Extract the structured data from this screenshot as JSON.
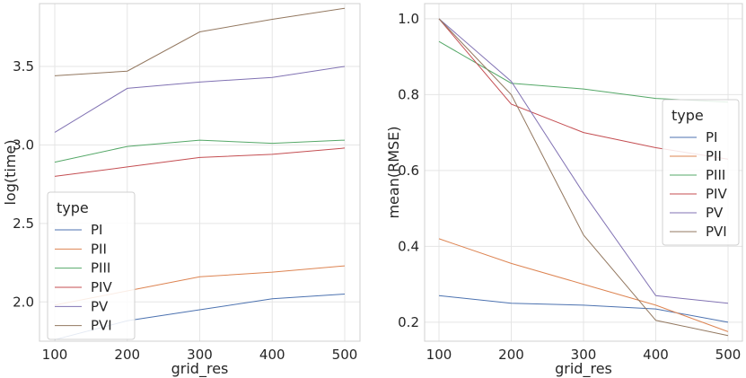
{
  "colors": {
    "PI": "#4c72b0",
    "PII": "#dd8452",
    "PIII": "#55a868",
    "PIV": "#c44e52",
    "PV": "#8172b3",
    "PVI": "#937860"
  },
  "chart_data": [
    {
      "type": "line",
      "xlabel": "grid_res",
      "ylabel": "log(time)",
      "x": [
        100,
        200,
        300,
        400,
        500
      ],
      "xticks": [
        "100",
        "200",
        "300",
        "400",
        "500"
      ],
      "yticks": [
        "2.0",
        "2.5",
        "3.0",
        "3.5"
      ],
      "ylim": [
        1.75,
        3.9
      ],
      "grid": true,
      "legend": {
        "title": "type",
        "placement": "lower-left"
      },
      "series": [
        {
          "name": "PI",
          "values": [
            1.76,
            1.88,
            1.95,
            2.02,
            2.05
          ]
        },
        {
          "name": "PII",
          "values": [
            1.98,
            2.07,
            2.16,
            2.19,
            2.23
          ]
        },
        {
          "name": "PIII",
          "values": [
            2.89,
            2.99,
            3.03,
            3.01,
            3.03
          ]
        },
        {
          "name": "PIV",
          "values": [
            2.8,
            2.86,
            2.92,
            2.94,
            2.98
          ]
        },
        {
          "name": "PV",
          "values": [
            3.08,
            3.36,
            3.4,
            3.43,
            3.5
          ]
        },
        {
          "name": "PVI",
          "values": [
            3.44,
            3.47,
            3.72,
            3.8,
            3.87
          ]
        }
      ]
    },
    {
      "type": "line",
      "xlabel": "grid_res",
      "ylabel": "mean(RMSE)",
      "x": [
        100,
        200,
        300,
        400,
        500
      ],
      "xticks": [
        "100",
        "200",
        "300",
        "400",
        "500"
      ],
      "yticks": [
        "0.2",
        "0.4",
        "0.6",
        "0.8",
        "1.0"
      ],
      "ylim": [
        0.15,
        1.04
      ],
      "grid": true,
      "legend": {
        "title": "type",
        "placement": "center-right"
      },
      "series": [
        {
          "name": "PI",
          "values": [
            0.27,
            0.25,
            0.245,
            0.235,
            0.2
          ]
        },
        {
          "name": "PII",
          "values": [
            0.42,
            0.355,
            0.3,
            0.245,
            0.175
          ]
        },
        {
          "name": "PIII",
          "values": [
            0.94,
            0.83,
            0.815,
            0.79,
            0.78
          ]
        },
        {
          "name": "PIV",
          "values": [
            1.0,
            0.775,
            0.7,
            0.66,
            0.63
          ]
        },
        {
          "name": "PV",
          "values": [
            1.0,
            0.835,
            0.54,
            0.27,
            0.25
          ]
        },
        {
          "name": "PVI",
          "values": [
            1.0,
            0.8,
            0.43,
            0.205,
            0.165
          ]
        }
      ]
    }
  ]
}
